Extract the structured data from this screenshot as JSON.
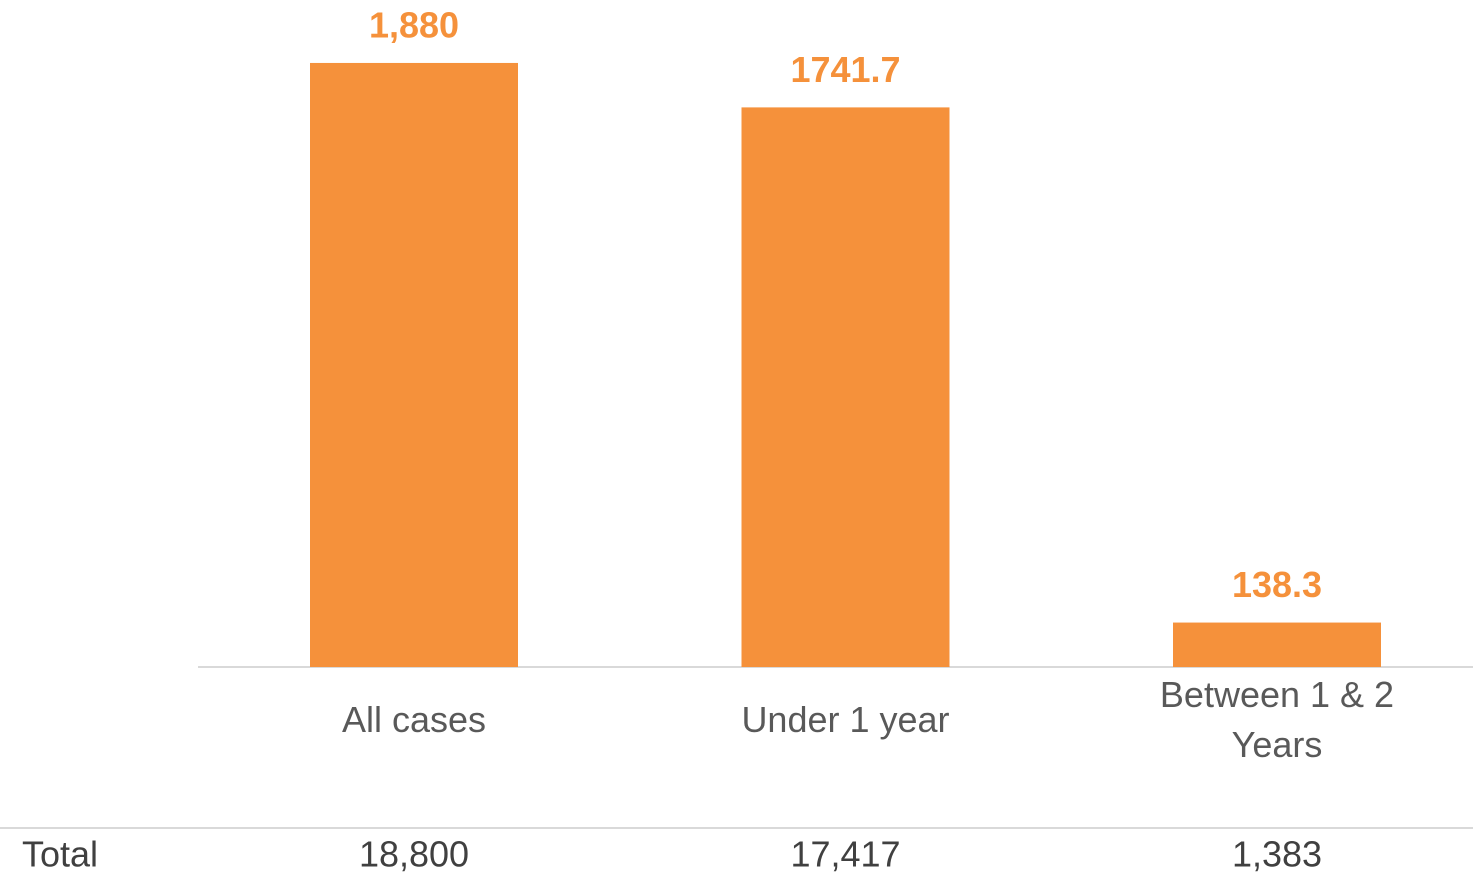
{
  "chart_data": {
    "type": "bar",
    "categories": [
      "All cases",
      "Under 1 year",
      "Between 1 & 2 Years"
    ],
    "values": [
      1880,
      1741.7,
      138.3
    ],
    "value_labels": [
      "1,880",
      "1741.7",
      "138.3"
    ],
    "color": "#f5913b",
    "ylim": [
      0,
      2000
    ]
  },
  "table": {
    "label": "Total",
    "cells": [
      "18,800",
      "17,417",
      "1,383"
    ]
  }
}
